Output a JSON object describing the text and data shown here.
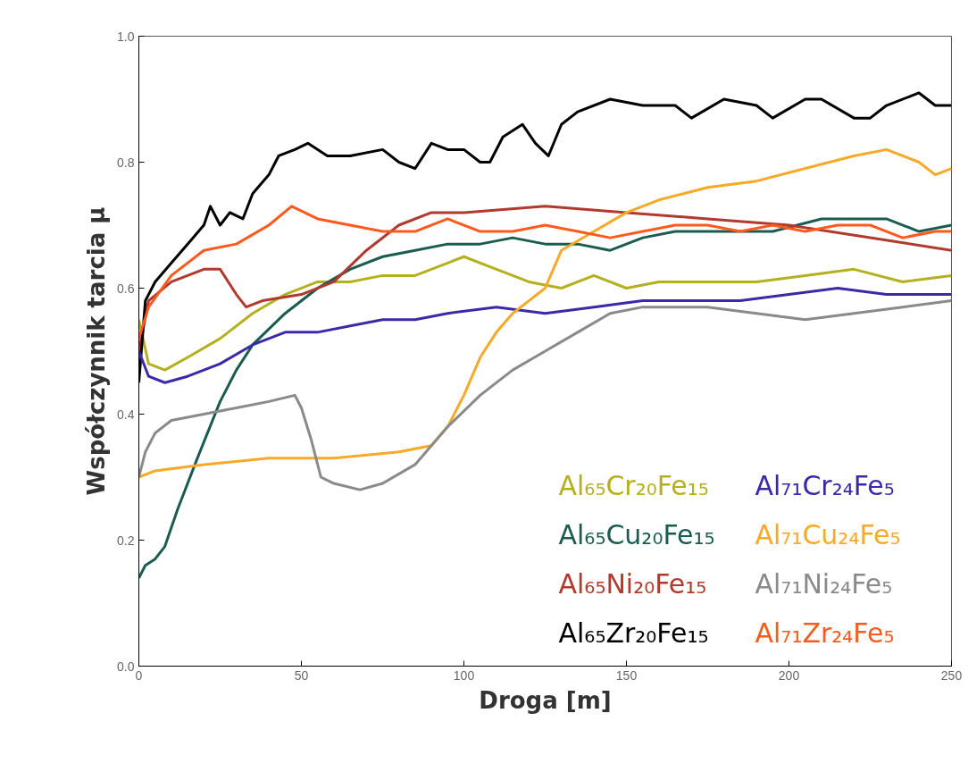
{
  "chart_data": {
    "type": "line",
    "xlabel": "Droga [m]",
    "ylabel": "Współczynnik tarcia μ",
    "xlim": [
      0,
      250
    ],
    "xticks": [
      0,
      50,
      100,
      150,
      200,
      250
    ],
    "ylim": [
      0,
      1.0
    ],
    "yticks": [
      {
        "value": 0,
        "label": "0.0"
      },
      0.2,
      0.4,
      0.6,
      0.8,
      {
        "value": 1.0,
        "label": "1.0"
      }
    ],
    "grid": false,
    "legend": "bottom right",
    "marker": "none",
    "line_style": "solid",
    "series": [
      {
        "name": "Al₆₅Cr₂₀Fe₁₅",
        "color": "#b5b020",
        "x": [
          0,
          3,
          8,
          15,
          25,
          35,
          45,
          55,
          65,
          75,
          85,
          95,
          100,
          110,
          120,
          130,
          140,
          150,
          160,
          175,
          190,
          205,
          220,
          235,
          250
        ],
        "values": [
          0.55,
          0.48,
          0.47,
          0.49,
          0.52,
          0.56,
          0.59,
          0.61,
          0.61,
          0.62,
          0.62,
          0.64,
          0.65,
          0.63,
          0.61,
          0.6,
          0.62,
          0.6,
          0.61,
          0.61,
          0.61,
          0.62,
          0.63,
          0.61,
          0.62
        ]
      },
      {
        "name": "Al₆₅Cu₂₀Fe₁₅",
        "color": "#1a5c50",
        "x": [
          0,
          2,
          5,
          8,
          12,
          18,
          25,
          30,
          35,
          45,
          55,
          65,
          75,
          85,
          95,
          105,
          115,
          125,
          135,
          145,
          155,
          165,
          180,
          195,
          210,
          220,
          230,
          240,
          250
        ],
        "values": [
          0.14,
          0.16,
          0.17,
          0.19,
          0.25,
          0.33,
          0.42,
          0.47,
          0.51,
          0.56,
          0.6,
          0.63,
          0.65,
          0.66,
          0.67,
          0.67,
          0.68,
          0.67,
          0.67,
          0.66,
          0.68,
          0.69,
          0.69,
          0.69,
          0.71,
          0.71,
          0.71,
          0.69,
          0.7
        ]
      },
      {
        "name": "Al₆₅Ni₂₀Fe₁₅",
        "color": "#b03a2e",
        "x": [
          0,
          3,
          10,
          20,
          25,
          30,
          33,
          38,
          50,
          60,
          70,
          80,
          90,
          100,
          125,
          150,
          175,
          200,
          225,
          250
        ],
        "values": [
          0.5,
          0.58,
          0.61,
          0.63,
          0.63,
          0.59,
          0.57,
          0.58,
          0.59,
          0.61,
          0.66,
          0.7,
          0.72,
          0.72,
          0.73,
          0.72,
          0.71,
          0.7,
          0.68,
          0.66
        ]
      },
      {
        "name": "Al₆₅Zr₂₀Fe₁₅",
        "color": "#000000",
        "x": [
          0,
          2,
          5,
          10,
          15,
          20,
          22,
          25,
          28,
          32,
          35,
          40,
          43,
          48,
          52,
          58,
          65,
          75,
          80,
          85,
          90,
          95,
          100,
          105,
          108,
          112,
          118,
          122,
          126,
          130,
          135,
          145,
          155,
          165,
          170,
          180,
          190,
          195,
          205,
          210,
          220,
          225,
          230,
          240,
          245,
          250
        ],
        "values": [
          0.45,
          0.58,
          0.61,
          0.64,
          0.67,
          0.7,
          0.73,
          0.7,
          0.72,
          0.71,
          0.75,
          0.78,
          0.81,
          0.82,
          0.83,
          0.81,
          0.81,
          0.82,
          0.8,
          0.79,
          0.83,
          0.82,
          0.82,
          0.8,
          0.8,
          0.84,
          0.86,
          0.83,
          0.81,
          0.86,
          0.88,
          0.9,
          0.89,
          0.89,
          0.87,
          0.9,
          0.89,
          0.87,
          0.9,
          0.9,
          0.87,
          0.87,
          0.89,
          0.91,
          0.89,
          0.89
        ]
      },
      {
        "name": "Al₇₁Cr₂₄Fe₅",
        "color": "#3a2aa8",
        "x": [
          0,
          3,
          8,
          15,
          25,
          35,
          45,
          55,
          65,
          75,
          85,
          95,
          110,
          125,
          140,
          155,
          170,
          185,
          200,
          215,
          230,
          250
        ],
        "values": [
          0.5,
          0.46,
          0.45,
          0.46,
          0.48,
          0.51,
          0.53,
          0.53,
          0.54,
          0.55,
          0.55,
          0.56,
          0.57,
          0.56,
          0.57,
          0.58,
          0.58,
          0.58,
          0.59,
          0.6,
          0.59,
          0.59
        ]
      },
      {
        "name": "Al₇₁Cu₂₄Fe₅",
        "color": "#f7a928",
        "x": [
          0,
          5,
          20,
          40,
          60,
          80,
          90,
          95,
          100,
          105,
          110,
          115,
          120,
          125,
          130,
          140,
          150,
          160,
          175,
          190,
          205,
          220,
          230,
          240,
          245,
          250
        ],
        "values": [
          0.3,
          0.31,
          0.32,
          0.33,
          0.33,
          0.34,
          0.35,
          0.38,
          0.43,
          0.49,
          0.53,
          0.56,
          0.58,
          0.6,
          0.66,
          0.69,
          0.72,
          0.74,
          0.76,
          0.77,
          0.79,
          0.81,
          0.82,
          0.8,
          0.78,
          0.79
        ]
      },
      {
        "name": "Al₇₁Ni₂₄Fe₅",
        "color": "#8a8a8a",
        "x": [
          0,
          2,
          5,
          10,
          20,
          30,
          40,
          48,
          50,
          53,
          56,
          60,
          68,
          75,
          85,
          95,
          105,
          115,
          125,
          135,
          145,
          155,
          175,
          190,
          205,
          220,
          235,
          250
        ],
        "values": [
          0.3,
          0.34,
          0.37,
          0.39,
          0.4,
          0.41,
          0.42,
          0.43,
          0.41,
          0.36,
          0.3,
          0.29,
          0.28,
          0.29,
          0.32,
          0.38,
          0.43,
          0.47,
          0.5,
          0.53,
          0.56,
          0.57,
          0.57,
          0.56,
          0.55,
          0.56,
          0.57,
          0.58
        ]
      },
      {
        "name": "Al₇₁Zr₂₄Fe₅",
        "color": "#ff5a1e",
        "x": [
          0,
          3,
          10,
          20,
          30,
          40,
          47,
          55,
          65,
          75,
          85,
          95,
          105,
          115,
          125,
          135,
          145,
          155,
          165,
          175,
          185,
          195,
          205,
          215,
          225,
          235,
          245,
          250
        ],
        "values": [
          0.52,
          0.57,
          0.62,
          0.66,
          0.67,
          0.7,
          0.73,
          0.71,
          0.7,
          0.69,
          0.69,
          0.71,
          0.69,
          0.69,
          0.7,
          0.69,
          0.68,
          0.69,
          0.7,
          0.7,
          0.69,
          0.7,
          0.69,
          0.7,
          0.7,
          0.68,
          0.69,
          0.69
        ]
      }
    ]
  }
}
